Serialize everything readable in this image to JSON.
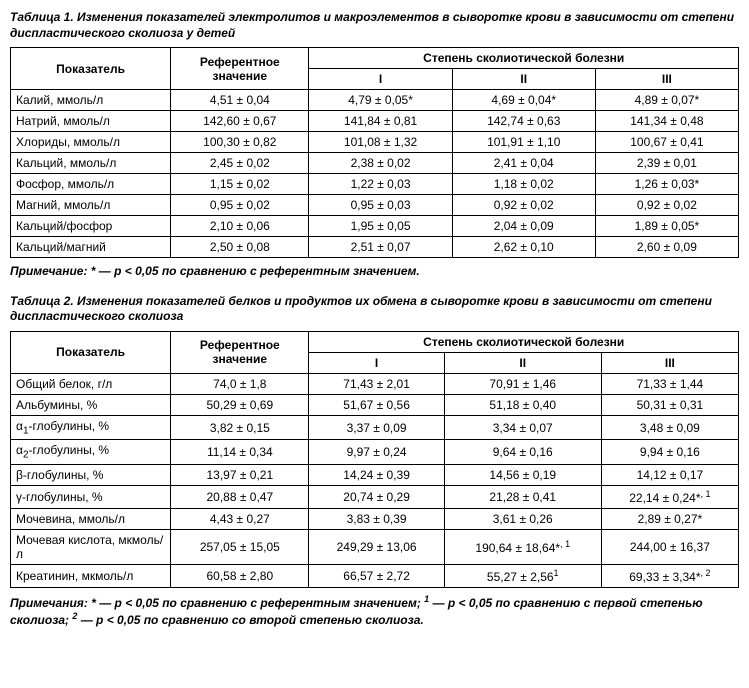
{
  "table1": {
    "title": "Таблица 1. Изменения показателей электролитов и макроэлементов в сыворотке крови в зависимости от степени диспластического сколиоза у детей",
    "headers": {
      "indicator": "Показатель",
      "reference": "Референтное значение",
      "degree": "Степень сколиотической болезни",
      "d1": "I",
      "d2": "II",
      "d3": "III"
    },
    "rows": [
      {
        "ind": "Калий, ммоль/л",
        "ref": "4,51 ± 0,04",
        "d1": "4,79 ± 0,05*",
        "d2": "4,69 ± 0,04*",
        "d3": "4,89 ± 0,07*"
      },
      {
        "ind": "Натрий, ммоль/л",
        "ref": "142,60 ± 0,67",
        "d1": "141,84 ± 0,81",
        "d2": "142,74 ± 0,63",
        "d3": "141,34 ± 0,48"
      },
      {
        "ind": "Хлориды, ммоль/л",
        "ref": "100,30 ± 0,82",
        "d1": "101,08 ± 1,32",
        "d2": "101,91 ± 1,10",
        "d3": "100,67 ± 0,41"
      },
      {
        "ind": "Кальций, ммоль/л",
        "ref": "2,45 ± 0,02",
        "d1": "2,38 ± 0,02",
        "d2": "2,41 ± 0,04",
        "d3": "2,39 ± 0,01"
      },
      {
        "ind": "Фосфор, ммоль/л",
        "ref": "1,15 ± 0,02",
        "d1": "1,22 ± 0,03",
        "d2": "1,18 ± 0,02",
        "d3": "1,26 ± 0,03*"
      },
      {
        "ind": "Магний, ммоль/л",
        "ref": "0,95 ± 0,02",
        "d1": "0,95 ± 0,03",
        "d2": "0,92 ± 0,02",
        "d3": "0,92 ± 0,02"
      },
      {
        "ind": "Кальций/фосфор",
        "ref": "2,10 ± 0,06",
        "d1": "1,95 ± 0,05",
        "d2": "2,04 ± 0,09",
        "d3": "1,89 ± 0,05*"
      },
      {
        "ind": "Кальций/магний",
        "ref": "2,50 ± 0,08",
        "d1": "2,51 ± 0,07",
        "d2": "2,62 ± 0,10",
        "d3": "2,60 ± 0,09"
      }
    ],
    "note": "Примечание: * — p < 0,05 по сравнению с референтным значением."
  },
  "table2": {
    "title": "Таблица 2. Изменения показателей белков и продуктов их обмена в сыворотке крови в зависимости от степени диспластического сколиоза",
    "headers": {
      "indicator": "Показатель",
      "reference": "Референтное значение",
      "degree": "Степень сколиотической болезни",
      "d1": "I",
      "d2": "II",
      "d3": "III"
    },
    "rows": [
      {
        "ind": "Общий белок, г/л",
        "ref": "74,0 ± 1,8",
        "d1": "71,43 ± 2,01",
        "d2": "70,91 ± 1,46",
        "d3": "71,33 ± 1,44"
      },
      {
        "ind": "Альбумины, %",
        "ref": "50,29 ± 0,69",
        "d1": "51,67 ± 0,56",
        "d2": "51,18 ± 0,40",
        "d3": "50,31 ± 0,31"
      },
      {
        "ind": "α<sub>1</sub>-глобулины, %",
        "ref": "3,82 ± 0,15",
        "d1": "3,37 ± 0,09",
        "d2": "3,34 ± 0,07",
        "d3": "3,48 ± 0,09"
      },
      {
        "ind": "α<sub>2</sub>-глобулины, %",
        "ref": "11,14 ± 0,34",
        "d1": "9,97 ± 0,24",
        "d2": "9,64 ± 0,16",
        "d3": "9,94 ± 0,16"
      },
      {
        "ind": "β-глобулины, %",
        "ref": "13,97 ± 0,21",
        "d1": "14,24 ± 0,39",
        "d2": "14,56 ± 0,19",
        "d3": "14,12 ± 0,17"
      },
      {
        "ind": "γ-глобулины, %",
        "ref": "20,88 ± 0,47",
        "d1": "20,74 ± 0,29",
        "d2": "21,28 ± 0,41",
        "d3": "22,14 ± 0,24*<sup>, 1</sup>"
      },
      {
        "ind": "Мочевина, ммоль/л",
        "ref": "4,43 ± 0,27",
        "d1": "3,83 ± 0,39",
        "d2": "3,61 ± 0,26",
        "d3": "2,89 ± 0,27*"
      },
      {
        "ind": "Мочевая кислота, мкмоль/л",
        "ref": "257,05 ± 15,05",
        "d1": "249,29 ± 13,06",
        "d2": "190,64 ± 18,64*<sup>, 1</sup>",
        "d3": "244,00 ± 16,37"
      },
      {
        "ind": "Креатинин, мкмоль/л",
        "ref": "60,58 ± 2,80",
        "d1": "66,57 ± 2,72",
        "d2": "55,27 ± 2,56<sup>1</sup>",
        "d3": "69,33 ± 3,34*<sup>, 2</sup>"
      }
    ],
    "note": "Примечания: * — p < 0,05 по сравнению с референтным значением; <sup>1</sup> — p < 0,05 по сравнению с первой степенью сколиоза; <sup>2</sup> — p < 0,05 по сравнению со второй степенью сколиоза."
  },
  "col_widths": {
    "ind": "22%",
    "ref": "19%",
    "d": "19.6%"
  }
}
